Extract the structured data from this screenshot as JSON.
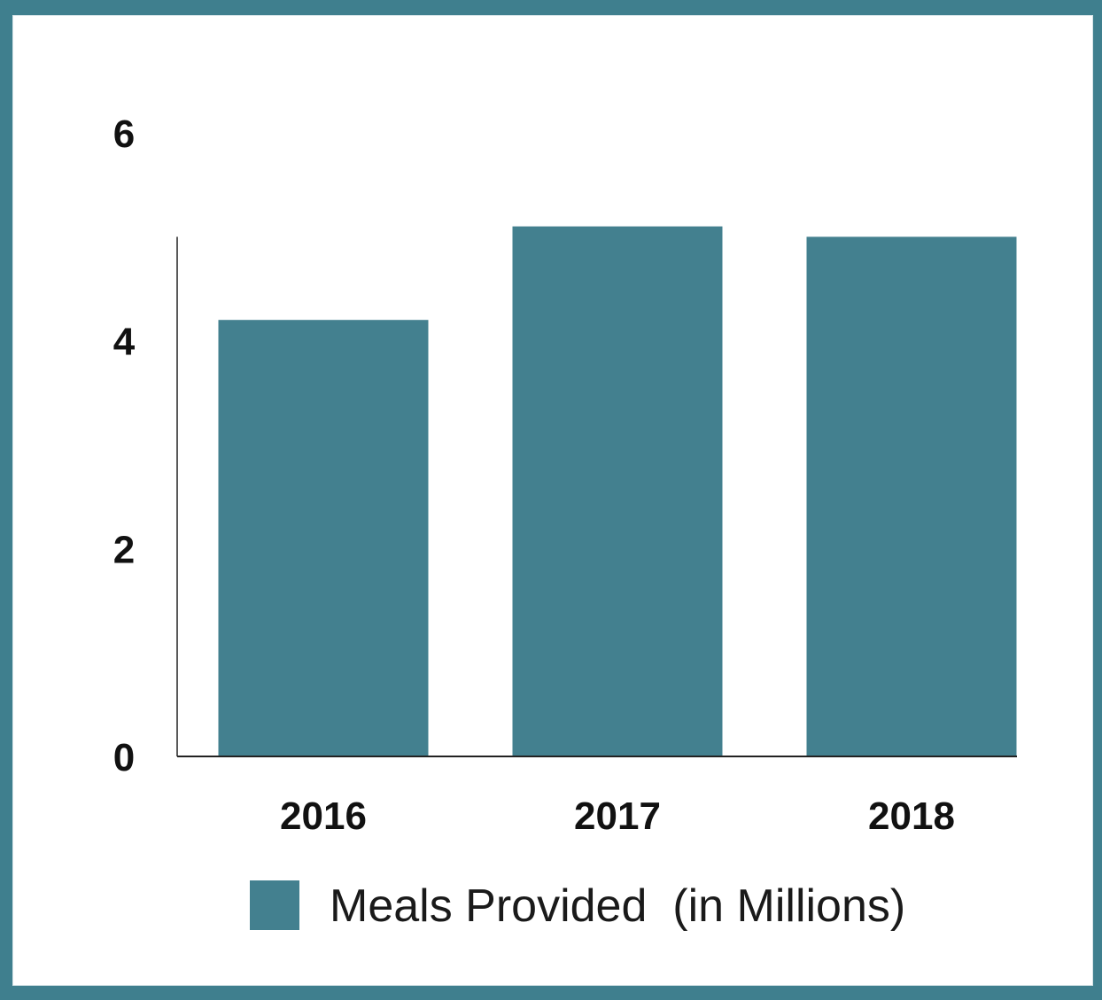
{
  "chart_data": {
    "type": "bar",
    "categories": [
      "2016",
      "2017",
      "2018"
    ],
    "series": [
      {
        "name": "Meals Provided  (in Millions)",
        "values": [
          4.2,
          5.1,
          5.0
        ],
        "color": "#43808f"
      }
    ],
    "yticks": [
      "0",
      "2",
      "4",
      "6"
    ],
    "ylim": [
      0,
      6
    ],
    "grid": false,
    "legend_position": "bottom",
    "title": "",
    "xlabel": "",
    "ylabel": ""
  },
  "frame_color": "#3f7f8e"
}
